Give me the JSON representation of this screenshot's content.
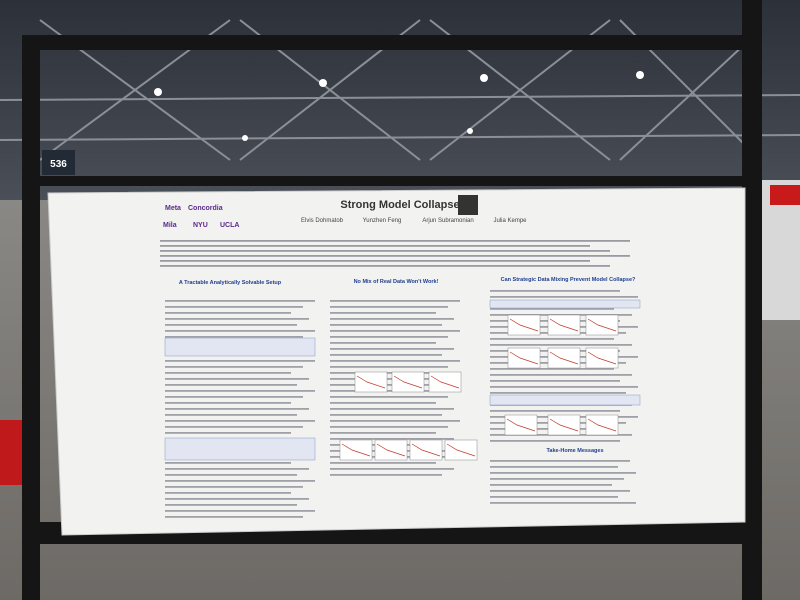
{
  "booth_number": "536",
  "poster": {
    "title": "Strong Model Collapse",
    "authors": [
      "Elvis Dohmatob",
      "Yunzhen Feng",
      "Arjun Subramonian",
      "Julia Kempe"
    ],
    "affiliations": [
      "Meta",
      "Concordia",
      "Mila",
      "NYU",
      "UCLA"
    ],
    "sections": [
      "A Tractable Analytically Solvable Setup",
      "No Mix of Real Data Won't Work!",
      "Can Strategic Data Mixing Prevent Model Collapse?",
      "Take-Home Messages"
    ]
  }
}
